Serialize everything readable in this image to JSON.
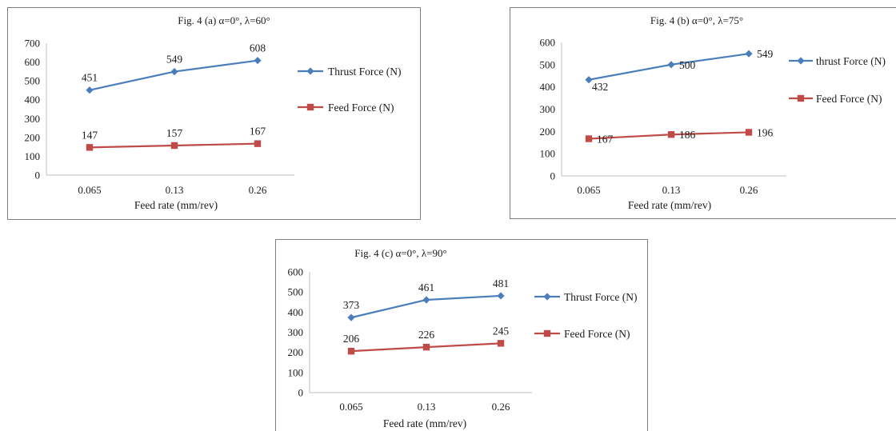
{
  "chart_data": [
    {
      "type": "line",
      "title": "Fig. 4 (a) α=0°, λ=60°",
      "xlabel": "Feed rate (mm/rev)",
      "ylabel": "",
      "categories": [
        "0.065",
        "0.13",
        "0.26"
      ],
      "ylim": [
        0,
        700
      ],
      "yticks": [
        0,
        100,
        200,
        300,
        400,
        500,
        600,
        700
      ],
      "grid": false,
      "legend_position": "right",
      "series": [
        {
          "name": "Thrust Force (N)",
          "values": [
            451,
            549,
            608
          ],
          "color": "#4a7ebb",
          "marker": "diamond"
        },
        {
          "name": "Feed Force (N)",
          "values": [
            147,
            157,
            167
          ],
          "color": "#be4b48",
          "marker": "square"
        }
      ]
    },
    {
      "type": "line",
      "title": "Fig. 4 (b) α=0°, λ=75°",
      "xlabel": "Feed rate (mm/rev)",
      "ylabel": "",
      "categories": [
        "0.065",
        "0.13",
        "0.26"
      ],
      "ylim": [
        0,
        600
      ],
      "yticks": [
        0,
        100,
        200,
        300,
        400,
        500,
        600
      ],
      "grid": false,
      "legend_position": "right",
      "series": [
        {
          "name": "thrust Force (N)",
          "values": [
            432,
            500,
            549
          ],
          "color": "#4a7ebb",
          "marker": "diamond"
        },
        {
          "name": "Feed Force (N)",
          "values": [
            167,
            186,
            196
          ],
          "color": "#be4b48",
          "marker": "square"
        }
      ]
    },
    {
      "type": "line",
      "title": "Fig. 4 (c) α=0°, λ=90°",
      "xlabel": "Feed rate (mm/rev)",
      "ylabel": "",
      "categories": [
        "0.065",
        "0.13",
        "0.26"
      ],
      "ylim": [
        0,
        600
      ],
      "yticks": [
        0,
        100,
        200,
        300,
        400,
        500,
        600
      ],
      "grid": false,
      "legend_position": "right",
      "series": [
        {
          "name": "Thrust Force (N)",
          "values": [
            373,
            461,
            481
          ],
          "color": "#4a7ebb",
          "marker": "diamond"
        },
        {
          "name": "Feed Force (N)",
          "values": [
            206,
            226,
            245
          ],
          "color": "#be4b48",
          "marker": "square"
        }
      ]
    }
  ]
}
